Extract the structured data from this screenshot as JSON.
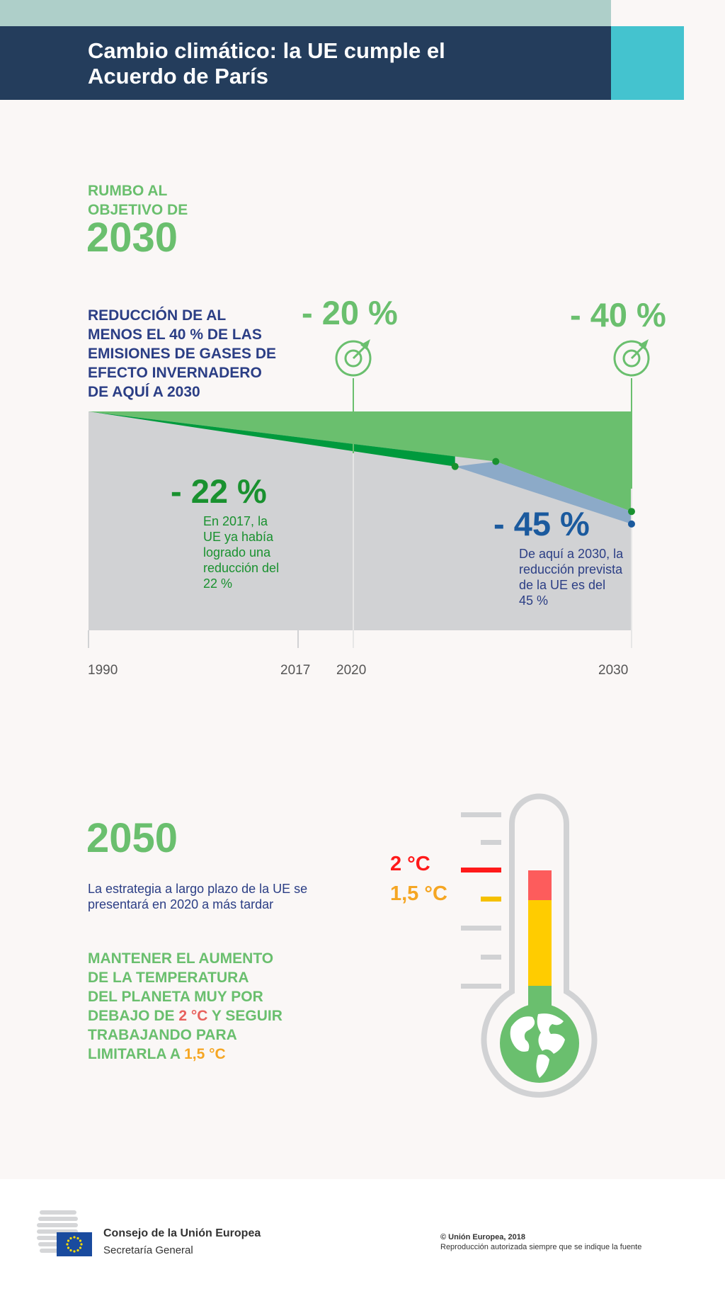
{
  "header": {
    "title_line1": "Cambio climático: la UE cumple el",
    "title_line2": "Acuerdo de París"
  },
  "section2030": {
    "kicker_line1": "RUMBO AL",
    "kicker_line2": "OBJETIVO DE",
    "year": "2030",
    "reduction_lines": [
      "REDUCCIÓN DE AL",
      "MENOS EL 40 % DE LAS",
      "EMISIONES DE GASES DE",
      "EFECTO INVERNADERO",
      "DE AQUÍ A 2030"
    ]
  },
  "chart_data": {
    "type": "area",
    "x_ticks": [
      "1990",
      "2017",
      "2020",
      "2030"
    ],
    "series": [
      {
        "name": "Objetivo",
        "x": [
          1990,
          2020,
          2030
        ],
        "y": [
          0,
          -20,
          -40
        ]
      },
      {
        "name": "Reducción",
        "x": [
          1990,
          2017
        ],
        "y": [
          0,
          -22
        ]
      },
      {
        "name": "Reducción prevista",
        "x": [
          2017,
          2030
        ],
        "y": [
          -22,
          -45
        ]
      }
    ],
    "annotations": {
      "target_2020": "- 20 %",
      "target_2030": "- 40 %",
      "achieved_2017": "- 22 %",
      "achieved_2017_note": [
        "En 2017, la",
        "UE ya había",
        "logrado una",
        "reducción del",
        "22 %"
      ],
      "projected_2030": "- 45 %",
      "projected_2030_note": [
        "De aquí a 2030, la",
        "reducción prevista",
        "de la UE es del",
        "45 %"
      ]
    },
    "colors": {
      "target": "#6abf6e",
      "achieved": "#009a3d",
      "projected": "#8caac8",
      "base": "#d1d2d4",
      "projected_text": "#1b5a9e",
      "achieved_text": "#19912f"
    }
  },
  "section2050": {
    "year": "2050",
    "strategy_lines": [
      "La estrategia a largo plazo de la UE se",
      "presentará en 2020 a más tardar"
    ],
    "keep_lines_part1": [
      "MANTENER EL AUMENTO",
      "DE LA TEMPERATURA",
      "DEL PLANETA MUY POR"
    ],
    "keep_debajo": "DEBAJO DE ",
    "keep_two": "2 °C",
    "keep_y_seguir": " Y SEGUIR",
    "keep_trabajando": "TRABAJANDO PARA",
    "keep_limitarla": "LIMITARLA A ",
    "keep_one_five": "1,5 °C",
    "thermo_label_2": "2 °C",
    "thermo_label_15": "1,5 °C",
    "thermo_colors": {
      "red": "#fd5c5c",
      "yellow": "#ffcc00",
      "green": "#6abf6e",
      "outline": "#d1d2d4",
      "label_red": "#ff1a1a",
      "label_orange": "#f5a623"
    },
    "globe_icon": "globe-icon"
  },
  "footer": {
    "org": "Consejo de la Unión Europea",
    "sub": "Secretaría General",
    "copyright": "© Unión Europea, 2018",
    "repro": "Reproducción autorizada siempre que se indique la fuente",
    "logo_icon": "council-logo-icon"
  }
}
